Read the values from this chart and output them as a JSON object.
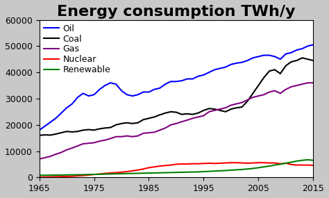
{
  "title": "Energy consumption TWh/y",
  "xlim": [
    1965,
    2015
  ],
  "ylim": [
    0,
    60000
  ],
  "yticks": [
    0,
    10000,
    20000,
    30000,
    40000,
    50000,
    60000
  ],
  "xticks": [
    1965,
    1975,
    1985,
    1995,
    2005,
    2015
  ],
  "figure_bg": "#c8c8c8",
  "axes_bg": "#ffffff",
  "series": {
    "Oil": {
      "color": "#0000ff",
      "data": [
        [
          1965,
          18000
        ],
        [
          1966,
          19500
        ],
        [
          1967,
          21000
        ],
        [
          1968,
          22500
        ],
        [
          1969,
          24500
        ],
        [
          1970,
          26500
        ],
        [
          1971,
          28000
        ],
        [
          1972,
          30500
        ],
        [
          1973,
          32000
        ],
        [
          1974,
          31000
        ],
        [
          1975,
          31500
        ],
        [
          1976,
          33500
        ],
        [
          1977,
          35000
        ],
        [
          1978,
          36000
        ],
        [
          1979,
          35500
        ],
        [
          1980,
          33000
        ],
        [
          1981,
          31500
        ],
        [
          1982,
          31000
        ],
        [
          1983,
          31500
        ],
        [
          1984,
          32500
        ],
        [
          1985,
          32500
        ],
        [
          1986,
          33500
        ],
        [
          1987,
          34000
        ],
        [
          1988,
          35500
        ],
        [
          1989,
          36500
        ],
        [
          1990,
          36500
        ],
        [
          1991,
          36800
        ],
        [
          1992,
          37500
        ],
        [
          1993,
          37500
        ],
        [
          1994,
          38500
        ],
        [
          1995,
          39000
        ],
        [
          1996,
          40000
        ],
        [
          1997,
          41000
        ],
        [
          1998,
          41500
        ],
        [
          1999,
          42000
        ],
        [
          2000,
          43000
        ],
        [
          2001,
          43500
        ],
        [
          2002,
          43800
        ],
        [
          2003,
          44500
        ],
        [
          2004,
          45500
        ],
        [
          2005,
          46000
        ],
        [
          2006,
          46500
        ],
        [
          2007,
          46500
        ],
        [
          2008,
          46000
        ],
        [
          2009,
          45000
        ],
        [
          2010,
          47000
        ],
        [
          2011,
          47500
        ],
        [
          2012,
          48500
        ],
        [
          2013,
          49000
        ],
        [
          2014,
          50000
        ],
        [
          2015,
          50500
        ]
      ]
    },
    "Coal": {
      "color": "#000000",
      "data": [
        [
          1965,
          16000
        ],
        [
          1966,
          16200
        ],
        [
          1967,
          16100
        ],
        [
          1968,
          16500
        ],
        [
          1969,
          17000
        ],
        [
          1970,
          17500
        ],
        [
          1971,
          17300
        ],
        [
          1972,
          17500
        ],
        [
          1973,
          18000
        ],
        [
          1974,
          18200
        ],
        [
          1975,
          18000
        ],
        [
          1976,
          18500
        ],
        [
          1977,
          18800
        ],
        [
          1978,
          19000
        ],
        [
          1979,
          20000
        ],
        [
          1980,
          20500
        ],
        [
          1981,
          20800
        ],
        [
          1982,
          20500
        ],
        [
          1983,
          20800
        ],
        [
          1984,
          22000
        ],
        [
          1985,
          22500
        ],
        [
          1986,
          23000
        ],
        [
          1987,
          23800
        ],
        [
          1988,
          24500
        ],
        [
          1989,
          25000
        ],
        [
          1990,
          24800
        ],
        [
          1991,
          24000
        ],
        [
          1992,
          24200
        ],
        [
          1993,
          24000
        ],
        [
          1994,
          24500
        ],
        [
          1995,
          25500
        ],
        [
          1996,
          26200
        ],
        [
          1997,
          26000
        ],
        [
          1998,
          25500
        ],
        [
          1999,
          25000
        ],
        [
          2000,
          26000
        ],
        [
          2001,
          26500
        ],
        [
          2002,
          26800
        ],
        [
          2003,
          29000
        ],
        [
          2004,
          32000
        ],
        [
          2005,
          35000
        ],
        [
          2006,
          38000
        ],
        [
          2007,
          40500
        ],
        [
          2008,
          41000
        ],
        [
          2009,
          39500
        ],
        [
          2010,
          42500
        ],
        [
          2011,
          44000
        ],
        [
          2012,
          44500
        ],
        [
          2013,
          45500
        ],
        [
          2014,
          45000
        ],
        [
          2015,
          44500
        ]
      ]
    },
    "Gas": {
      "color": "#800080",
      "data": [
        [
          1965,
          7000
        ],
        [
          1966,
          7500
        ],
        [
          1967,
          8000
        ],
        [
          1968,
          8800
        ],
        [
          1969,
          9500
        ],
        [
          1970,
          10500
        ],
        [
          1971,
          11200
        ],
        [
          1972,
          12000
        ],
        [
          1973,
          12800
        ],
        [
          1974,
          13000
        ],
        [
          1975,
          13200
        ],
        [
          1976,
          13800
        ],
        [
          1977,
          14200
        ],
        [
          1978,
          14800
        ],
        [
          1979,
          15500
        ],
        [
          1980,
          15500
        ],
        [
          1981,
          15800
        ],
        [
          1982,
          15500
        ],
        [
          1983,
          15800
        ],
        [
          1984,
          16800
        ],
        [
          1985,
          17000
        ],
        [
          1986,
          17200
        ],
        [
          1987,
          18000
        ],
        [
          1988,
          18800
        ],
        [
          1989,
          20000
        ],
        [
          1990,
          20500
        ],
        [
          1991,
          21200
        ],
        [
          1992,
          21800
        ],
        [
          1993,
          22500
        ],
        [
          1994,
          23000
        ],
        [
          1995,
          23500
        ],
        [
          1996,
          25000
        ],
        [
          1997,
          25500
        ],
        [
          1998,
          26000
        ],
        [
          1999,
          26500
        ],
        [
          2000,
          27500
        ],
        [
          2001,
          28000
        ],
        [
          2002,
          28500
        ],
        [
          2003,
          29500
        ],
        [
          2004,
          30500
        ],
        [
          2005,
          31000
        ],
        [
          2006,
          31500
        ],
        [
          2007,
          32500
        ],
        [
          2008,
          33000
        ],
        [
          2009,
          32000
        ],
        [
          2010,
          33500
        ],
        [
          2011,
          34500
        ],
        [
          2012,
          35000
        ],
        [
          2013,
          35500
        ],
        [
          2014,
          36000
        ],
        [
          2015,
          36000
        ]
      ]
    },
    "Nuclear": {
      "color": "#ff0000",
      "data": [
        [
          1965,
          100
        ],
        [
          1966,
          150
        ],
        [
          1967,
          200
        ],
        [
          1968,
          250
        ],
        [
          1969,
          300
        ],
        [
          1970,
          350
        ],
        [
          1971,
          450
        ],
        [
          1972,
          600
        ],
        [
          1973,
          700
        ],
        [
          1974,
          900
        ],
        [
          1975,
          1100
        ],
        [
          1976,
          1300
        ],
        [
          1977,
          1500
        ],
        [
          1978,
          1700
        ],
        [
          1979,
          1800
        ],
        [
          1980,
          2000
        ],
        [
          1981,
          2200
        ],
        [
          1982,
          2500
        ],
        [
          1983,
          2800
        ],
        [
          1984,
          3200
        ],
        [
          1985,
          3700
        ],
        [
          1986,
          4000
        ],
        [
          1987,
          4300
        ],
        [
          1988,
          4500
        ],
        [
          1989,
          4700
        ],
        [
          1990,
          5000
        ],
        [
          1991,
          5100
        ],
        [
          1992,
          5100
        ],
        [
          1993,
          5200
        ],
        [
          1994,
          5200
        ],
        [
          1995,
          5300
        ],
        [
          1996,
          5400
        ],
        [
          1997,
          5300
        ],
        [
          1998,
          5400
        ],
        [
          1999,
          5500
        ],
        [
          2000,
          5600
        ],
        [
          2001,
          5600
        ],
        [
          2002,
          5500
        ],
        [
          2003,
          5400
        ],
        [
          2004,
          5500
        ],
        [
          2005,
          5600
        ],
        [
          2006,
          5600
        ],
        [
          2007,
          5500
        ],
        [
          2008,
          5500
        ],
        [
          2009,
          5200
        ],
        [
          2010,
          5400
        ],
        [
          2011,
          4900
        ],
        [
          2012,
          4700
        ],
        [
          2013,
          4700
        ],
        [
          2014,
          4700
        ],
        [
          2015,
          4600
        ]
      ]
    },
    "Renewable": {
      "color": "#008000",
      "data": [
        [
          1965,
          800
        ],
        [
          1966,
          820
        ],
        [
          1967,
          850
        ],
        [
          1968,
          870
        ],
        [
          1969,
          900
        ],
        [
          1970,
          950
        ],
        [
          1971,
          980
        ],
        [
          1972,
          1000
        ],
        [
          1973,
          1050
        ],
        [
          1974,
          1100
        ],
        [
          1975,
          1150
        ],
        [
          1976,
          1200
        ],
        [
          1977,
          1250
        ],
        [
          1978,
          1300
        ],
        [
          1979,
          1350
        ],
        [
          1980,
          1400
        ],
        [
          1981,
          1450
        ],
        [
          1982,
          1500
        ],
        [
          1983,
          1550
        ],
        [
          1984,
          1600
        ],
        [
          1985,
          1650
        ],
        [
          1986,
          1700
        ],
        [
          1987,
          1750
        ],
        [
          1988,
          1800
        ],
        [
          1989,
          1850
        ],
        [
          1990,
          1900
        ],
        [
          1991,
          1950
        ],
        [
          1992,
          2000
        ],
        [
          1993,
          2050
        ],
        [
          1994,
          2100
        ],
        [
          1995,
          2200
        ],
        [
          1996,
          2300
        ],
        [
          1997,
          2400
        ],
        [
          1998,
          2500
        ],
        [
          1999,
          2600
        ],
        [
          2000,
          2750
        ],
        [
          2001,
          2900
        ],
        [
          2002,
          3000
        ],
        [
          2003,
          3200
        ],
        [
          2004,
          3400
        ],
        [
          2005,
          3700
        ],
        [
          2006,
          4000
        ],
        [
          2007,
          4300
        ],
        [
          2008,
          4700
        ],
        [
          2009,
          5000
        ],
        [
          2010,
          5400
        ],
        [
          2011,
          5800
        ],
        [
          2012,
          6200
        ],
        [
          2013,
          6500
        ],
        [
          2014,
          6700
        ],
        [
          2015,
          6500
        ]
      ]
    }
  },
  "legend_order": [
    "Oil",
    "Coal",
    "Gas",
    "Nuclear",
    "Renewable"
  ],
  "title_fontsize": 16,
  "title_fontweight": "bold",
  "legend_fontsize": 9,
  "tick_fontsize": 9
}
